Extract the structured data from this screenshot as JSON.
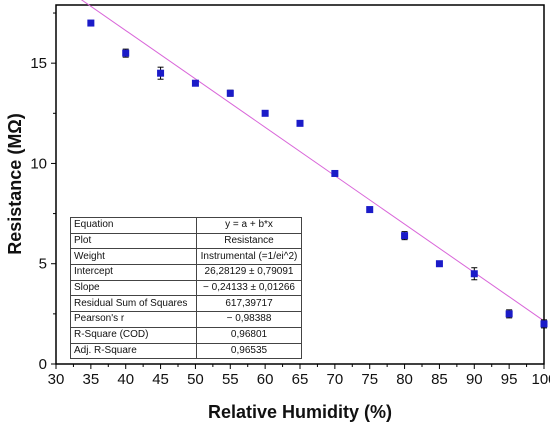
{
  "chart_data": {
    "type": "scatter",
    "xlabel": "Relative Humidity (%)",
    "ylabel": "Resistance (MΩ)",
    "xlim": [
      30,
      100
    ],
    "ylim": [
      0,
      17.9
    ],
    "x_ticks": [
      "30",
      "35",
      "40",
      "45",
      "50",
      "55",
      "60",
      "65",
      "70",
      "75",
      "80",
      "85",
      "90",
      "95",
      "100"
    ],
    "y_ticks": [
      "0",
      "5",
      "10",
      "15"
    ],
    "grid": false,
    "series": [
      {
        "x": [
          35,
          40,
          45,
          50,
          55,
          60,
          65,
          70,
          75,
          80,
          85,
          90,
          95,
          100
        ],
        "y": [
          17.0,
          15.5,
          14.5,
          14.0,
          13.5,
          12.5,
          12.0,
          9.5,
          7.7,
          6.4,
          5.0,
          4.5,
          2.5,
          2.0
        ],
        "error": [
          0.1,
          0.2,
          0.3,
          0.1,
          0.15,
          0.1,
          0.1,
          0.1,
          0.1,
          0.2,
          0.1,
          0.3,
          0.2,
          0.2
        ],
        "color": "#1b1bc8"
      }
    ],
    "fit_line": {
      "intercept": 26.28129,
      "slope": -0.24133,
      "color": "#d966d9"
    },
    "fit_table": [
      {
        "label": "Equation",
        "value": "y = a + b*x"
      },
      {
        "label": "Plot",
        "value": "Resistance"
      },
      {
        "label": "Weight",
        "value": "Instrumental (=1/ei^2)"
      },
      {
        "label": "Intercept",
        "value": "26,28129 ± 0,79091"
      },
      {
        "label": "Slope",
        "value": "− 0,24133 ± 0,01266"
      },
      {
        "label": "Residual Sum of Squares",
        "value": "617,39717"
      },
      {
        "label": "Pearson's r",
        "value": "− 0,98388"
      },
      {
        "label": "R-Square (COD)",
        "value": "0,96801"
      },
      {
        "label": "Adj. R-Square",
        "value": "0,96535"
      }
    ]
  }
}
